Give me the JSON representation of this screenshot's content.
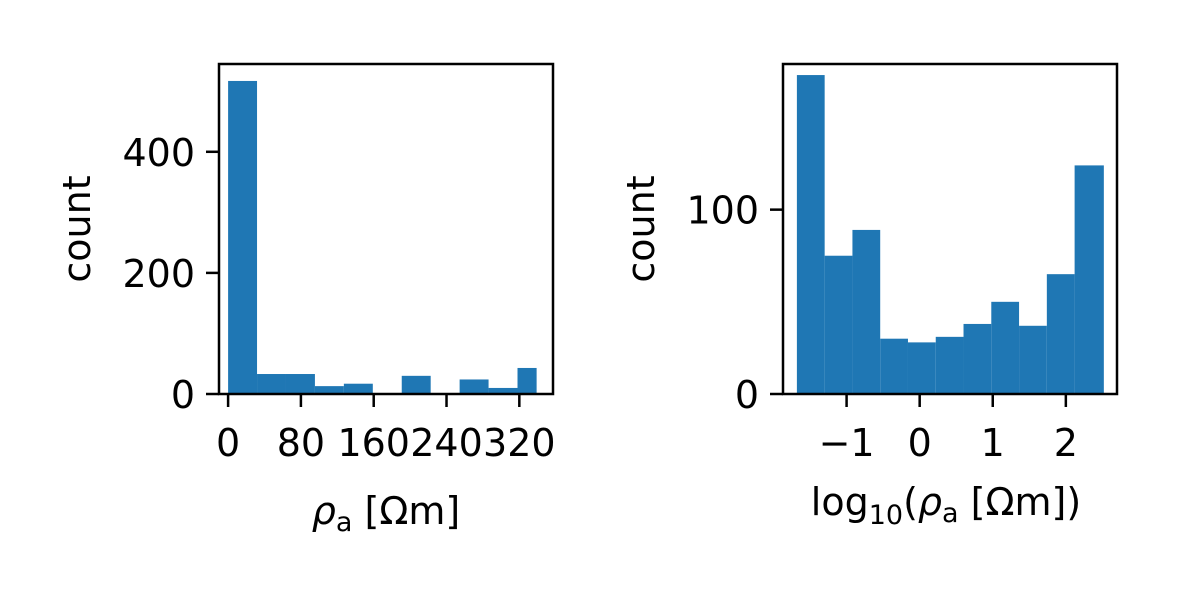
{
  "chart_data": [
    {
      "type": "bar",
      "bar_color": "#1f77b4",
      "xlabel": "ρa [Ωm]",
      "ylabel": "count",
      "xlim": [
        -10,
        357
      ],
      "ylim": [
        0,
        545
      ],
      "xticks": [
        0,
        80,
        160,
        240,
        320
      ],
      "xtick_labels": [
        "0",
        "80",
        "160",
        "240",
        "320"
      ],
      "yticks": [
        0,
        200,
        400
      ],
      "ytick_labels": [
        "0",
        "200",
        "400"
      ],
      "bin_edges": [
        0,
        31.8,
        63.6,
        95.4,
        127.2,
        159,
        190.8,
        222.6,
        254.4,
        286.2,
        318,
        339
      ],
      "counts": [
        517,
        33,
        33,
        13,
        17,
        0,
        30,
        0,
        24,
        10,
        43
      ]
    },
    {
      "type": "bar",
      "bar_color": "#1f77b4",
      "xlabel": "log10(ρa [Ωm])",
      "ylabel": "count",
      "xlim": [
        -1.87,
        2.7
      ],
      "ylim": [
        0,
        179
      ],
      "xticks": [
        -1,
        0,
        1,
        2
      ],
      "xtick_labels": [
        "−1",
        "0",
        "1",
        "2"
      ],
      "yticks": [
        0,
        100
      ],
      "ytick_labels": [
        "0",
        "100"
      ],
      "bin_edges": [
        -1.68,
        -1.3,
        -0.92,
        -0.54,
        -0.16,
        0.22,
        0.6,
        0.98,
        1.36,
        1.74,
        2.12,
        2.52
      ],
      "counts": [
        173,
        75,
        89,
        30,
        28,
        31,
        38,
        50,
        37,
        65,
        124
      ]
    }
  ]
}
